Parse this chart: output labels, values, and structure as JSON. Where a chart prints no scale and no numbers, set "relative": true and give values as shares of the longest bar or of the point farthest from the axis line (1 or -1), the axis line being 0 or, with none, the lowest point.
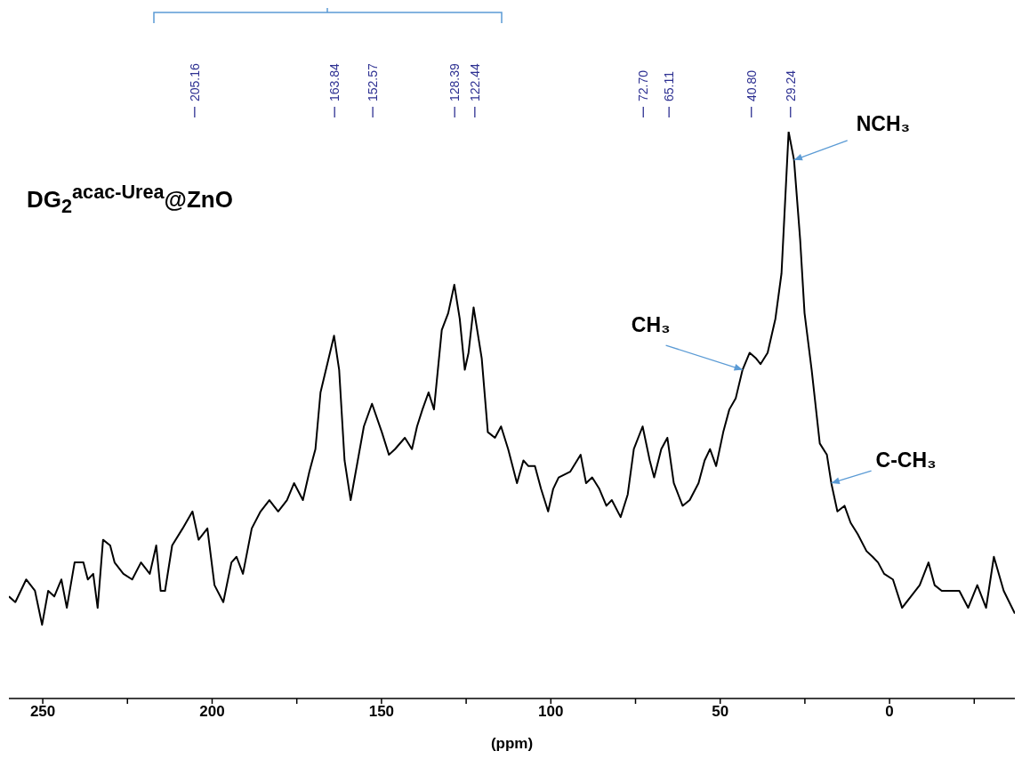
{
  "chart_data": {
    "type": "line",
    "relative": true,
    "title": "DG$_{2}$$^{acac-Urea}$@ZnO",
    "xlabel": "(ppm)",
    "xlim": [
      260,
      -37
    ],
    "xticks": [
      250,
      {
        "value": 225,
        "label": null
      },
      200,
      {
        "value": 175,
        "label": null
      },
      150,
      {
        "value": 125,
        "label": null
      },
      100,
      {
        "value": 75,
        "label": null
      },
      50,
      {
        "value": 25,
        "label": null
      },
      0,
      {
        "value": -25,
        "label": null
      }
    ],
    "grid": false,
    "legend": false,
    "marker": "none",
    "line_style": "solid",
    "series": [
      {
        "color": "#000000",
        "x": [
          260,
          258.1,
          254.9,
          252.3,
          250.2,
          248.4,
          246.6,
          244.5,
          242.9,
          240.6,
          238.0,
          236.7,
          235.1,
          233.8,
          232.2,
          230.1,
          228.8,
          226.2,
          223.6,
          221.0,
          218.4,
          216.5,
          215.2,
          213.9,
          211.8,
          208.7,
          205.8,
          204.0,
          201.4,
          199.3,
          196.7,
          194.3,
          192.8,
          190.9,
          188.3,
          185.7,
          183.1,
          180.5,
          177.9,
          175.8,
          173.2,
          171.3,
          169.5,
          168.0,
          165.6,
          164.0,
          162.5,
          160.9,
          159.1,
          157.0,
          155.2,
          152.8,
          149.9,
          147.8,
          146.0,
          143.1,
          141.0,
          139.5,
          137.9,
          136.1,
          134.5,
          132.2,
          130.3,
          128.5,
          126.9,
          125.4,
          124.3,
          122.8,
          120.4,
          118.6,
          116.5,
          114.7,
          112.6,
          110.0,
          108.1,
          106.6,
          104.7,
          102.9,
          100.8,
          99.3,
          97.7,
          94.3,
          91.2,
          89.6,
          87.8,
          85.7,
          83.6,
          82.0,
          79.4,
          77.3,
          75.5,
          72.9,
          70.8,
          69.5,
          67.4,
          65.6,
          63.7,
          61.1,
          59.0,
          56.4,
          54.6,
          53.0,
          51.2,
          49.1,
          47.3,
          45.4,
          43.4,
          41.3,
          39.4,
          38.1,
          36.0,
          33.7,
          31.9,
          29.8,
          28.2,
          26.4,
          25.1,
          23.0,
          20.6,
          18.5,
          17.2,
          15.4,
          13.3,
          11.5,
          9.4,
          6.8,
          5.0,
          3.4,
          1.6,
          -1.0,
          -3.7,
          -6.3,
          -8.9,
          -11.5,
          -13.3,
          -15.4,
          -18.0,
          -20.6,
          -23.2,
          -25.9,
          -28.5,
          -30.8,
          -33.7,
          -37
        ],
        "values": [
          0.18,
          0.17,
          0.21,
          0.19,
          0.13,
          0.19,
          0.18,
          0.21,
          0.16,
          0.24,
          0.24,
          0.21,
          0.22,
          0.16,
          0.28,
          0.27,
          0.24,
          0.22,
          0.21,
          0.24,
          0.22,
          0.27,
          0.19,
          0.19,
          0.27,
          0.3,
          0.33,
          0.28,
          0.3,
          0.2,
          0.17,
          0.24,
          0.25,
          0.22,
          0.3,
          0.33,
          0.35,
          0.33,
          0.35,
          0.38,
          0.35,
          0.4,
          0.44,
          0.54,
          0.6,
          0.64,
          0.58,
          0.42,
          0.35,
          0.42,
          0.48,
          0.52,
          0.47,
          0.43,
          0.44,
          0.46,
          0.44,
          0.48,
          0.51,
          0.54,
          0.51,
          0.65,
          0.68,
          0.73,
          0.67,
          0.58,
          0.61,
          0.69,
          0.6,
          0.47,
          0.46,
          0.48,
          0.44,
          0.38,
          0.42,
          0.41,
          0.41,
          0.37,
          0.33,
          0.37,
          0.39,
          0.4,
          0.43,
          0.38,
          0.39,
          0.37,
          0.34,
          0.35,
          0.32,
          0.36,
          0.44,
          0.48,
          0.42,
          0.39,
          0.44,
          0.46,
          0.38,
          0.34,
          0.35,
          0.38,
          0.42,
          0.44,
          0.41,
          0.47,
          0.51,
          0.53,
          0.58,
          0.61,
          0.6,
          0.59,
          0.61,
          0.67,
          0.75,
          1,
          0.95,
          0.81,
          0.68,
          0.58,
          0.45,
          0.43,
          0.38,
          0.33,
          0.34,
          0.31,
          0.29,
          0.26,
          0.25,
          0.24,
          0.22,
          0.21,
          0.16,
          0.18,
          0.2,
          0.24,
          0.2,
          0.19,
          0.19,
          0.19,
          0.16,
          0.2,
          0.16,
          0.25,
          0.19,
          0.15
        ]
      }
    ],
    "ref_lines": [
      {
        "axis": "x",
        "value": 205.16,
        "label": "205.16"
      },
      {
        "axis": "x",
        "value": 163.84,
        "label": "163.84"
      },
      {
        "axis": "x",
        "value": 152.57,
        "label": "152.57"
      },
      {
        "axis": "x",
        "value": 128.39,
        "label": "128.39"
      },
      {
        "axis": "x",
        "value": 122.44,
        "label": "122.44"
      },
      {
        "axis": "x",
        "value": 72.7,
        "label": "72.70"
      },
      {
        "axis": "x",
        "value": 65.11,
        "label": "65.11"
      },
      {
        "axis": "x",
        "value": 40.8,
        "label": "40.80"
      },
      {
        "axis": "x",
        "value": 29.24,
        "label": "29.24"
      }
    ],
    "annotations": [
      {
        "text": "NCH₃",
        "x": 28.2,
        "y": 0.95
      },
      {
        "text": "CH₃",
        "x": 43.4,
        "y": 0.58
      },
      {
        "text": "C-CH₃",
        "x": 17.2,
        "y": 0.38
      }
    ]
  }
}
